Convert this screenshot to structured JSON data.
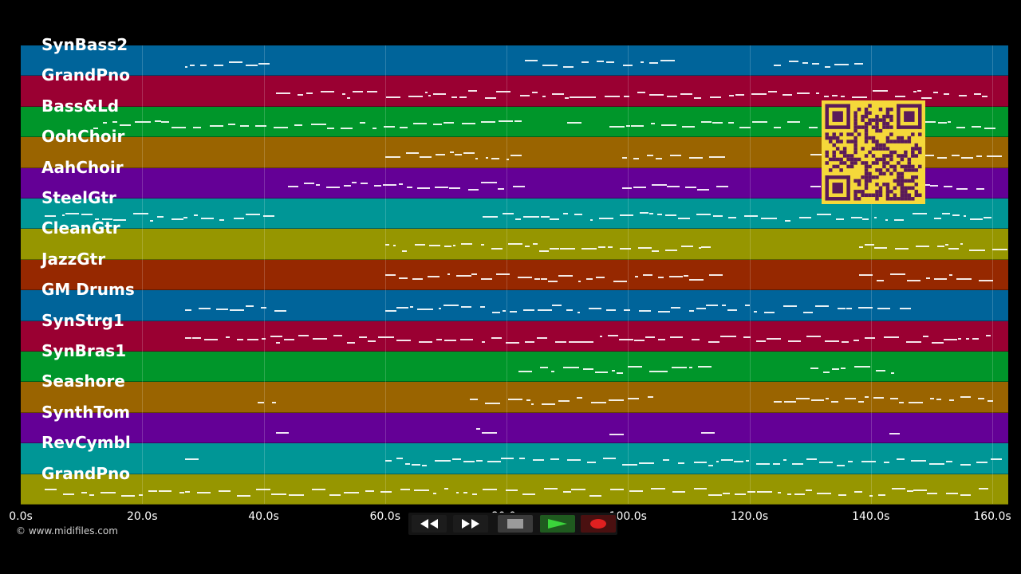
{
  "tracks": [
    {
      "name": "SynBass2",
      "color": "#00649a"
    },
    {
      "name": "GrandPno",
      "color": "#9a0032"
    },
    {
      "name": "Bass&Ld",
      "color": "#00962a"
    },
    {
      "name": "OohChoir",
      "color": "#9a6400"
    },
    {
      "name": "AahChoir",
      "color": "#640096"
    },
    {
      "name": "SteelGtr",
      "color": "#009696"
    },
    {
      "name": "CleanGtr",
      "color": "#969600"
    },
    {
      "name": "JazzGtr",
      "color": "#962800"
    },
    {
      "name": "GM Drums",
      "color": "#00649a"
    },
    {
      "name": "SynStrg1",
      "color": "#9a0032"
    },
    {
      "name": "SynBras1",
      "color": "#00962a"
    },
    {
      "name": "Seashore",
      "color": "#9a6400"
    },
    {
      "name": "SynthTom",
      "color": "#640096"
    },
    {
      "name": "RevCymbl",
      "color": "#009696"
    },
    {
      "name": "GrandPno",
      "color": "#969600"
    }
  ],
  "timeline": {
    "ticks": [
      "0.0s",
      "20.0s",
      "40.0s",
      "60.0s",
      "80.0s",
      "100.0s",
      "120.0s",
      "140.0s",
      "160.0s"
    ],
    "max_seconds": 162.5
  },
  "copyright": "© www.midifiles.com",
  "transport": {
    "buttons": [
      {
        "name": "rewind-button",
        "icon": "rewind-icon"
      },
      {
        "name": "fast-forward-button",
        "icon": "fast-forward-icon"
      },
      {
        "name": "stop-button",
        "icon": "stop-icon"
      },
      {
        "name": "play-button",
        "icon": "play-icon"
      },
      {
        "name": "record-button",
        "icon": "record-icon"
      }
    ]
  }
}
